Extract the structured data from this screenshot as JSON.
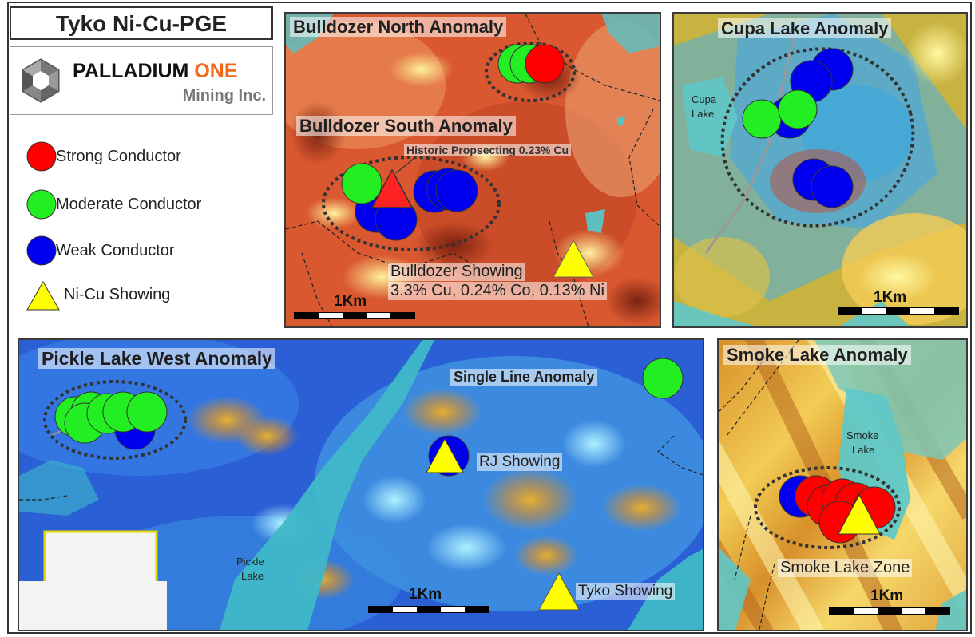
{
  "title": "Tyko Ni-Cu-PGE",
  "logo": {
    "name_part1": "PALLADIUM",
    "name_part2": "ONE",
    "subtitle": "Mining Inc."
  },
  "legend": [
    {
      "label": "Strong Conductor",
      "color": "#ff0000",
      "shape": "circle"
    },
    {
      "label": "Moderate Conductor",
      "color": "#22ee22",
      "shape": "circle"
    },
    {
      "label": "Weak Conductor",
      "color": "#0000ee",
      "shape": "circle"
    },
    {
      "label": "Ni-Cu Showing",
      "color": "#ffff00",
      "shape": "triangle"
    }
  ],
  "panels": {
    "bulldozer": {
      "north_title": "Bulldozer North Anomaly",
      "south_title": "Bulldozer South Anomaly",
      "historic": "Historic Propsecting 0.23% Cu",
      "showing_name": "Bulldozer Showing",
      "showing_grade": "3.3% Cu, 0.24% Co, 0.13% Ni",
      "scale_label": "1Km"
    },
    "cupa": {
      "title": "Cupa Lake Anomaly",
      "lake_line1": "Cupa",
      "lake_line2": "Lake",
      "scale_label": "1Km"
    },
    "pickle": {
      "title": "Pickle Lake West Anomaly",
      "single_line": "Single Line Anomaly",
      "rj": "RJ Showing",
      "tyko": "Tyko Showing",
      "lake_line1": "Pickle",
      "lake_line2": "Lake",
      "scale_label": "1Km"
    },
    "smoke": {
      "title": "Smoke Lake Anomaly",
      "lake_line1": "Smoke",
      "lake_line2": "Lake",
      "zone": "Smoke Lake Zone",
      "scale_label": "1Km"
    }
  },
  "colors": {
    "strong": "#ff0000",
    "moderate": "#22ee22",
    "weak": "#0000ee",
    "showing": "#ffff00",
    "accent_orange": "#f26a1b"
  }
}
